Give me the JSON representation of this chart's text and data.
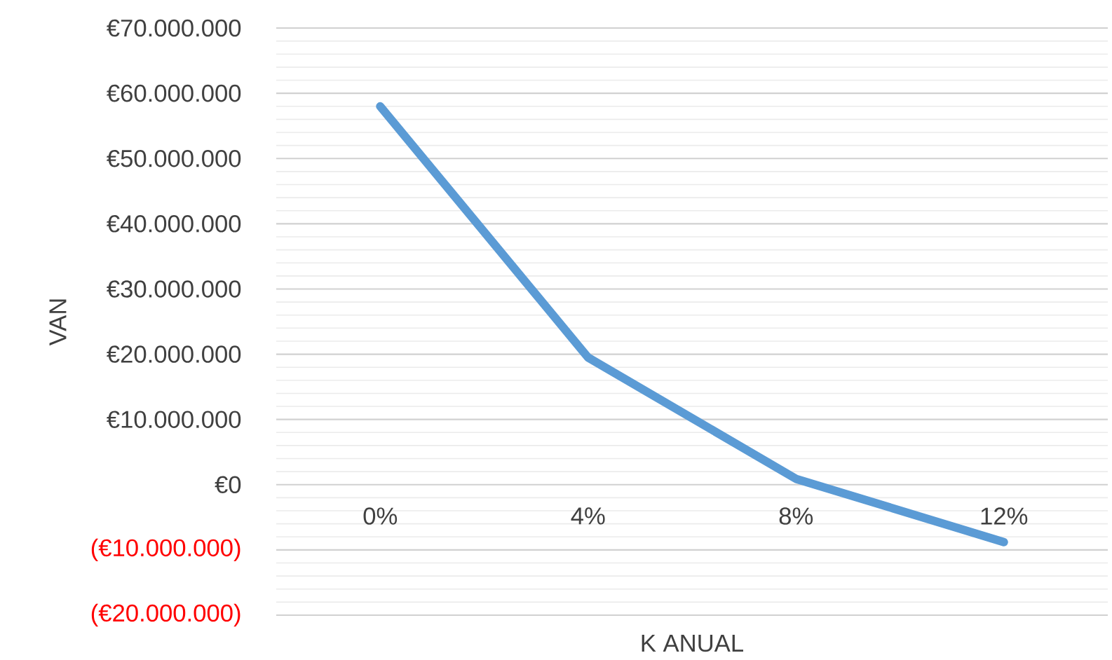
{
  "chart_data": {
    "type": "line",
    "xlabel": "K ANUAL",
    "ylabel": "VAN",
    "categories": [
      "0%",
      "4%",
      "8%",
      "12%"
    ],
    "values": [
      58000000,
      19500000,
      900000,
      -8800000
    ],
    "color": "#5b9bd5",
    "ylim": [
      -20000000,
      70000000
    ],
    "yticks": [
      {
        "value": -20000000,
        "label": "(€20.000.000)"
      },
      {
        "value": -10000000,
        "label": "(€10.000.000)"
      },
      {
        "value": 0,
        "label": "€0"
      },
      {
        "value": 10000000,
        "label": "€10.000.000"
      },
      {
        "value": 20000000,
        "label": "€20.000.000"
      },
      {
        "value": 30000000,
        "label": "€30.000.000"
      },
      {
        "value": 40000000,
        "label": "€40.000.000"
      },
      {
        "value": 50000000,
        "label": "€50.000.000"
      },
      {
        "value": 60000000,
        "label": "€60.000.000"
      },
      {
        "value": 70000000,
        "label": "€70.000.000"
      }
    ],
    "grid": true,
    "marker": "none",
    "line_style": "solid"
  }
}
